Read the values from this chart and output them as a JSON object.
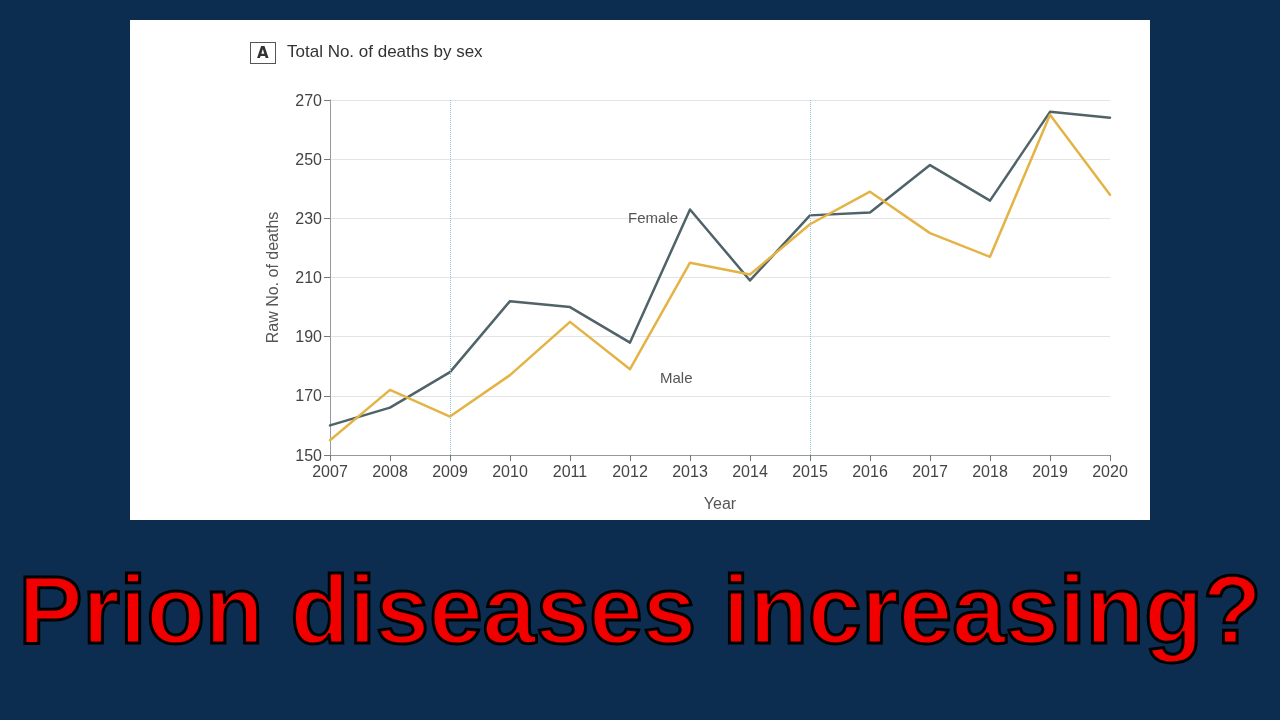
{
  "chart_data": {
    "type": "line",
    "title": "Total No. of deaths by sex",
    "xlabel": "Year",
    "ylabel": "Raw No. of deaths",
    "categories": [
      "2007",
      "2008",
      "2009",
      "2010",
      "2011",
      "2012",
      "2013",
      "2014",
      "2015",
      "2016",
      "2017",
      "2018",
      "2019",
      "2020"
    ],
    "series": [
      {
        "name": "Female",
        "color": "#4f6369",
        "values": [
          160,
          166,
          178,
          202,
          200,
          188,
          233,
          209,
          231,
          232,
          248,
          236,
          266,
          264
        ]
      },
      {
        "name": "Male",
        "color": "#e3b445",
        "values": [
          155,
          172,
          163,
          177,
          195,
          179,
          215,
          211,
          228,
          239,
          225,
          217,
          265,
          238
        ]
      }
    ],
    "ylim": [
      150,
      270
    ],
    "yticks": [
      150,
      170,
      190,
      210,
      230,
      250,
      270
    ],
    "grid": "y",
    "legend": false,
    "marker": "none",
    "line_style": "solid",
    "ref_lines": [
      {
        "axis": "x",
        "value": "2009",
        "color": "#8cc4dc",
        "line_style": "dotted"
      },
      {
        "axis": "x",
        "value": "2015",
        "color": "#8cc4dc",
        "line_style": "dotted"
      }
    ],
    "annotations": [
      "A",
      "Prion diseases increasing?"
    ]
  }
}
